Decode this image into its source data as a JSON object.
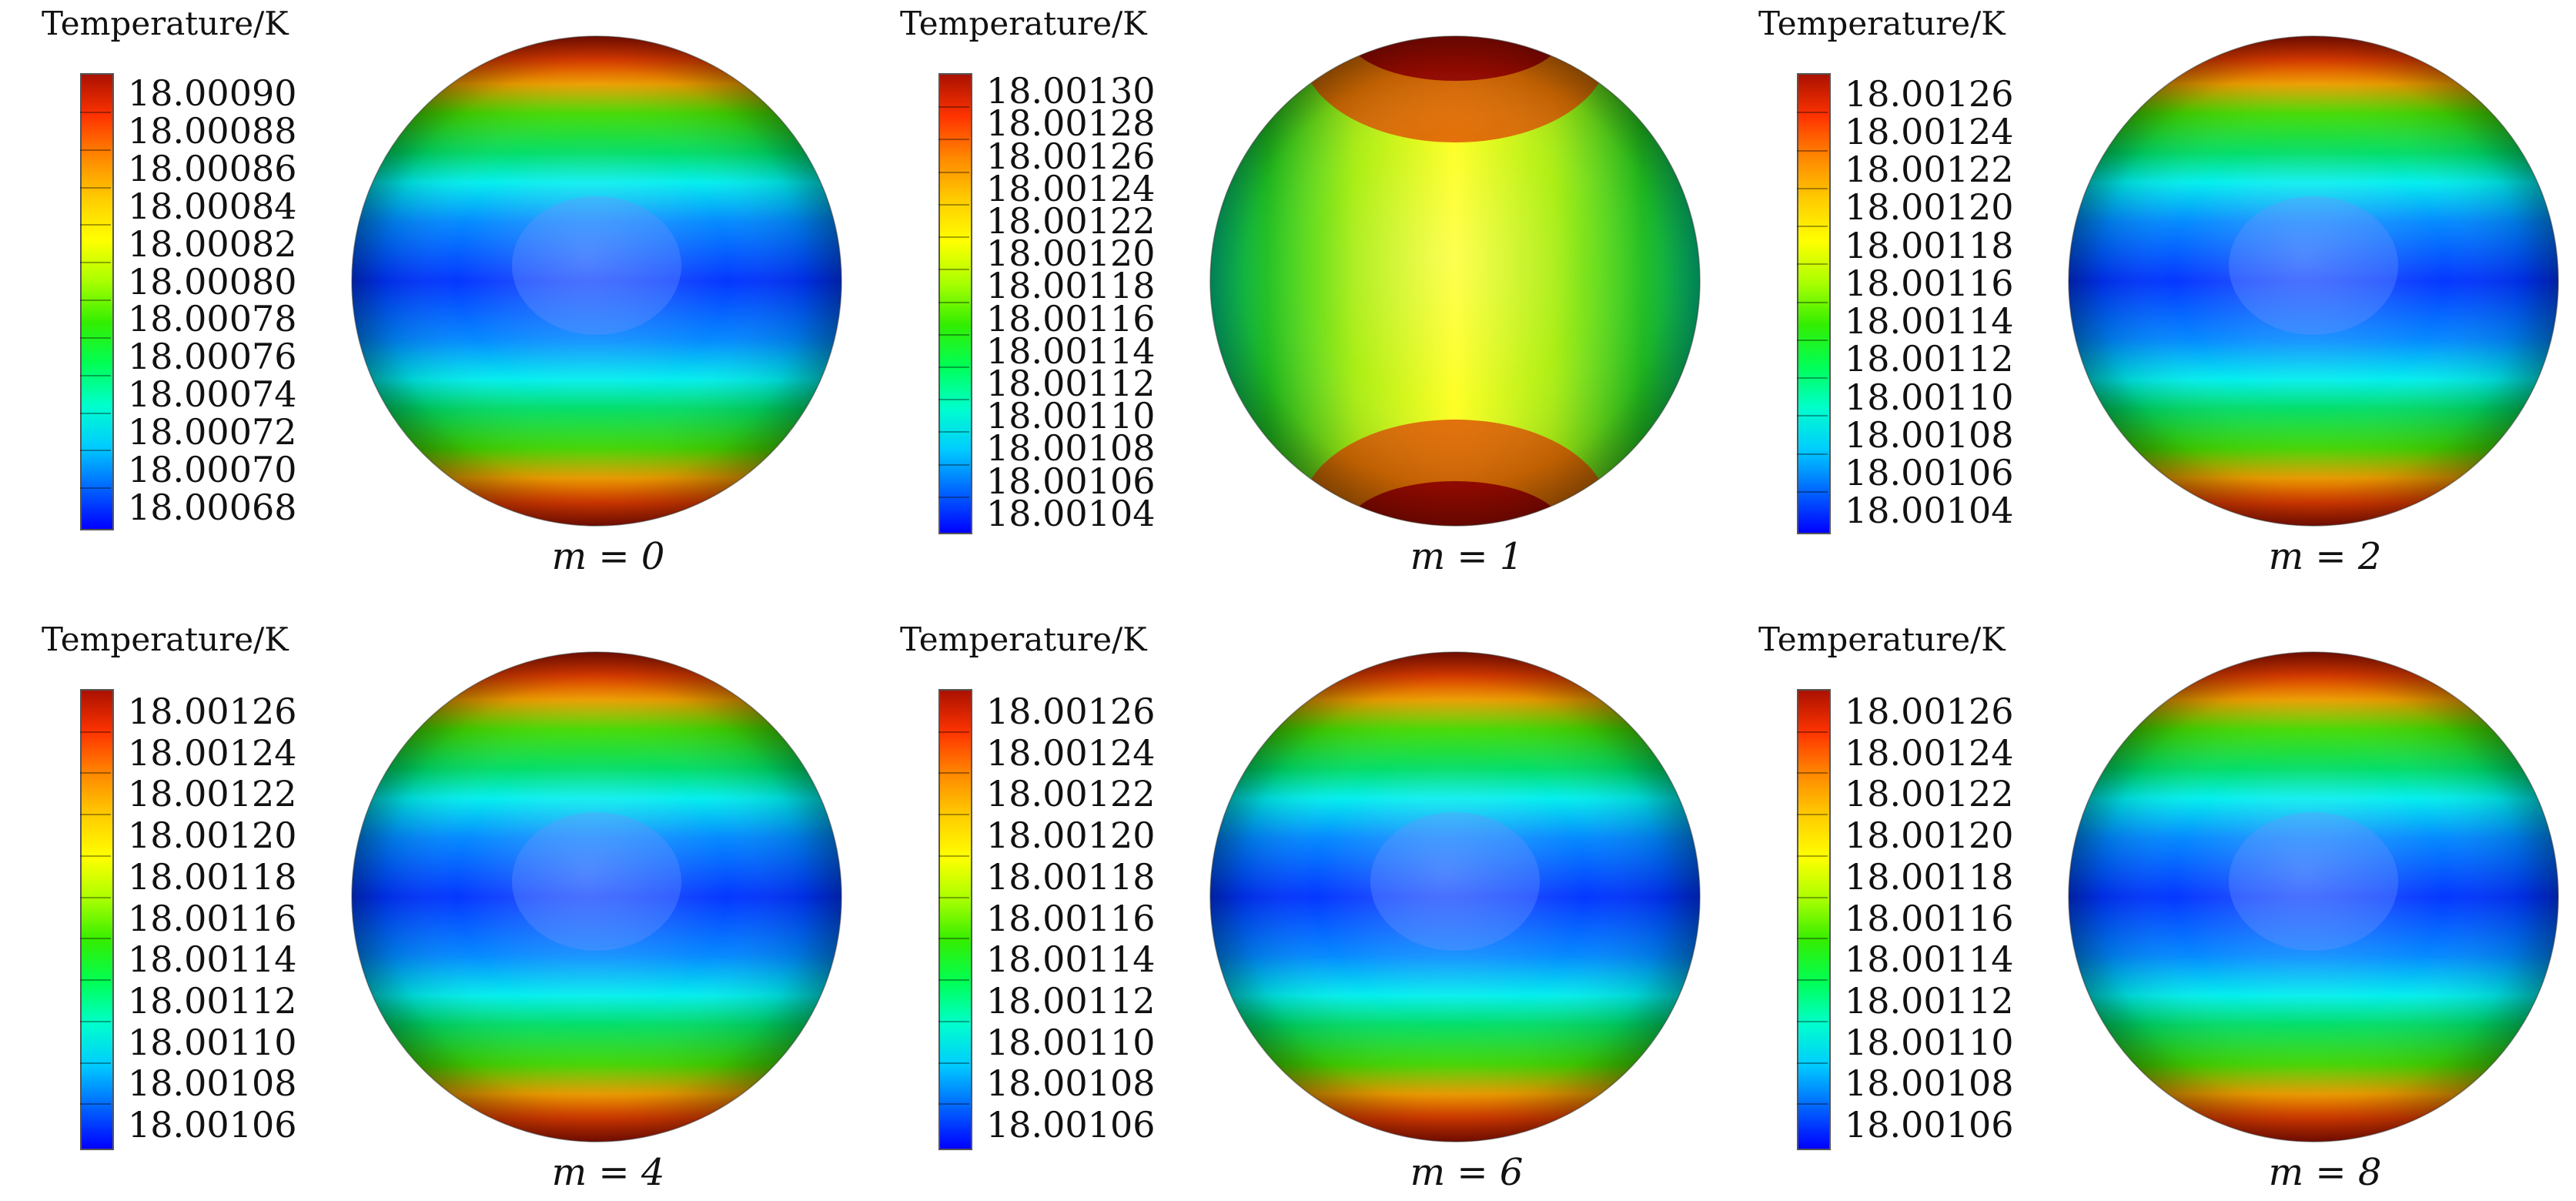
{
  "figure": {
    "panels": [
      {
        "title": "Temperature/K",
        "caption": "m = 0",
        "colorbar_ticks": [
          "18.00090",
          "18.00088",
          "18.00086",
          "18.00084",
          "18.00082",
          "18.00080",
          "18.00078",
          "18.00076",
          "18.00074",
          "18.00072",
          "18.00070",
          "18.00068"
        ],
        "pattern": "bands"
      },
      {
        "title": "Temperature/K",
        "caption": "m = 1",
        "colorbar_ticks": [
          "18.00130",
          "18.00128",
          "18.00126",
          "18.00124",
          "18.00122",
          "18.00120",
          "18.00118",
          "18.00116",
          "18.00114",
          "18.00112",
          "18.00110",
          "18.00108",
          "18.00106",
          "18.00104"
        ],
        "pattern": "warm-center"
      },
      {
        "title": "Temperature/K",
        "caption": "m = 2",
        "colorbar_ticks": [
          "18.00126",
          "18.00124",
          "18.00122",
          "18.00120",
          "18.00118",
          "18.00116",
          "18.00114",
          "18.00112",
          "18.00110",
          "18.00108",
          "18.00106",
          "18.00104"
        ],
        "pattern": "bands"
      },
      {
        "title": "Temperature/K",
        "caption": "m = 4",
        "colorbar_ticks": [
          "18.00126",
          "18.00124",
          "18.00122",
          "18.00120",
          "18.00118",
          "18.00116",
          "18.00114",
          "18.00112",
          "18.00110",
          "18.00108",
          "18.00106"
        ],
        "pattern": "bands"
      },
      {
        "title": "Temperature/K",
        "caption": "m = 6",
        "colorbar_ticks": [
          "18.00126",
          "18.00124",
          "18.00122",
          "18.00120",
          "18.00118",
          "18.00116",
          "18.00114",
          "18.00112",
          "18.00110",
          "18.00108",
          "18.00106"
        ],
        "pattern": "bands"
      },
      {
        "title": "Temperature/K",
        "caption": "m = 8",
        "colorbar_ticks": [
          "18.00126",
          "18.00124",
          "18.00122",
          "18.00120",
          "18.00118",
          "18.00116",
          "18.00114",
          "18.00112",
          "18.00110",
          "18.00108",
          "18.00106"
        ],
        "pattern": "bands"
      }
    ],
    "colormap": [
      "#0000ff",
      "#0066ff",
      "#00ccff",
      "#00ffcc",
      "#00ff55",
      "#33ee00",
      "#aaff00",
      "#ffff00",
      "#ffcc00",
      "#ff8800",
      "#ff3300",
      "#aa1100"
    ]
  }
}
